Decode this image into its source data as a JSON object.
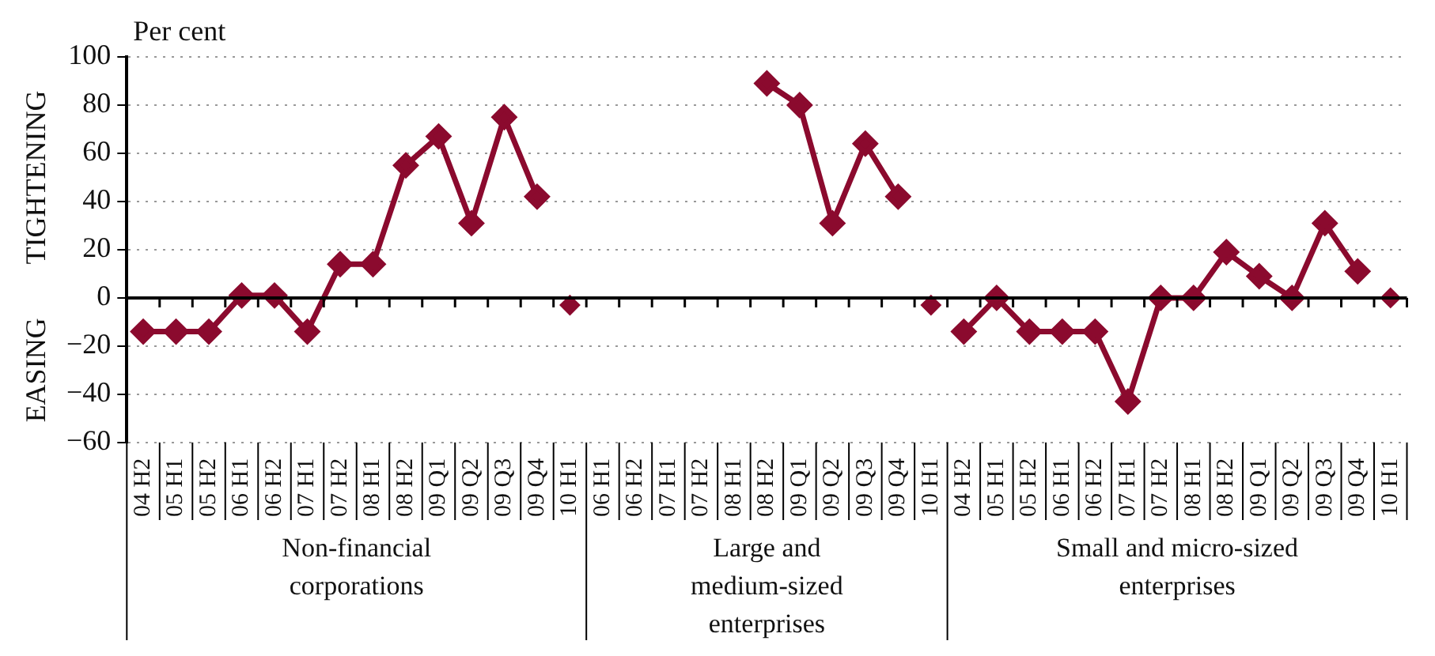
{
  "chart_data": {
    "type": "line",
    "ylabel": "Per cent",
    "categories": [
      "04 H2",
      "05 H1",
      "05 H2",
      "06 H1",
      "06 H2",
      "07 H1",
      "07 H2",
      "08 H1",
      "08 H2",
      "09 Q1",
      "09 Q2",
      "09 Q3",
      "09 Q4",
      "10 H1",
      "06 H1",
      "06 H2",
      "07 H1",
      "07 H2",
      "08 H1",
      "08 H2",
      "09 Q1",
      "09 Q2",
      "09 Q3",
      "09 Q4",
      "10 H1",
      "04 H2",
      "05 H1",
      "05 H2",
      "06 H1",
      "06 H2",
      "07 H1",
      "07 H2",
      "08 H1",
      "08 H2",
      "09 Q1",
      "09 Q2",
      "09 Q3",
      "09 Q4",
      "10 H1"
    ],
    "series": [
      {
        "type": "line",
        "color": "#8b0a2e",
        "values": [
          -14,
          -14,
          -14,
          1,
          1,
          -14,
          14,
          14,
          55,
          67,
          31,
          75,
          42,
          null,
          null,
          null,
          null,
          null,
          null,
          89,
          80,
          31,
          64,
          42,
          null,
          -14,
          0,
          -14,
          -14,
          -14,
          -43,
          0,
          0,
          19,
          9,
          0,
          31,
          11,
          null
        ]
      },
      {
        "type": "scatter",
        "color": "#8b0a2e",
        "values": [
          null,
          null,
          null,
          null,
          null,
          null,
          null,
          null,
          null,
          null,
          null,
          null,
          null,
          -3,
          null,
          null,
          null,
          null,
          null,
          null,
          null,
          null,
          null,
          null,
          -3,
          null,
          null,
          null,
          null,
          null,
          null,
          null,
          null,
          null,
          null,
          null,
          null,
          null,
          0
        ]
      }
    ],
    "ylim": [
      -60,
      100
    ],
    "yticks": [
      -60,
      -40,
      -20,
      0,
      20,
      40,
      60,
      80,
      100
    ],
    "grid": "y",
    "marker": "diamond",
    "legend": false,
    "annotations": [
      "Non-financial corporations",
      "Large and medium-sized enterprises",
      "Small and micro-sized enterprises",
      "TIGHTENING",
      "EASING"
    ]
  }
}
